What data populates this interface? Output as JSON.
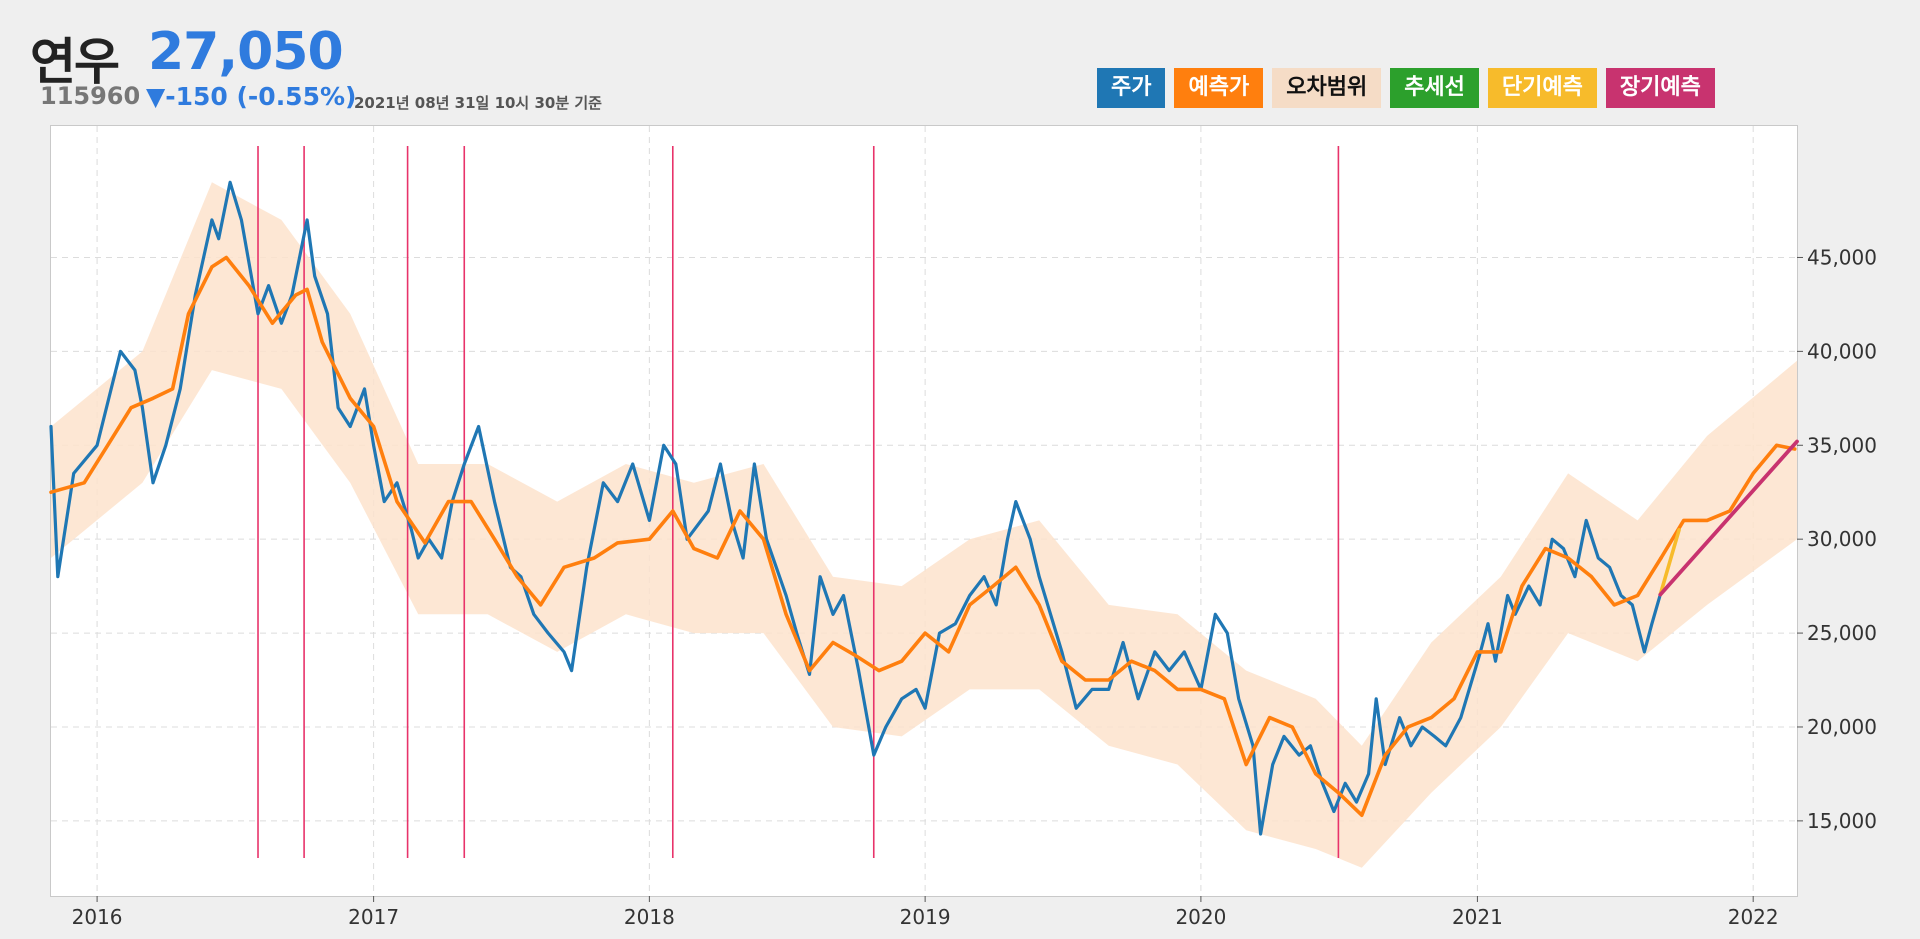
{
  "header": {
    "name": "연우",
    "price": "27,050",
    "code": "115960",
    "change": "▼-150 (-0.55%)",
    "date": "2021년 08년 31일 10시 30분 기준"
  },
  "legend": [
    {
      "label": "주가",
      "color": "#1f77b4",
      "text_color": "#ffffff"
    },
    {
      "label": "예측가",
      "color": "#ff7f0e",
      "text_color": "#ffffff"
    },
    {
      "label": "오차범위",
      "color": "#f5dcc6",
      "text_color": "#111111"
    },
    {
      "label": "추세선",
      "color": "#2ca02c",
      "text_color": "#ffffff"
    },
    {
      "label": "단기예측",
      "color": "#f7bb2b",
      "text_color": "#ffffff"
    },
    {
      "label": "장기예측",
      "color": "#c8336f",
      "text_color": "#ffffff"
    }
  ],
  "chart_data": {
    "type": "line",
    "x_axis": {
      "type": "date",
      "range": [
        "2015-11-01",
        "2022-02-28"
      ],
      "ticks": [
        "2016",
        "2017",
        "2018",
        "2019",
        "2020",
        "2021",
        "2022"
      ]
    },
    "y_axis": {
      "range": [
        11000,
        52000
      ],
      "position": "right",
      "ticks": [
        "15,000",
        "20,000",
        "25,000",
        "30,000",
        "35,000",
        "40,000",
        "45,000"
      ]
    },
    "grid": true,
    "vertical_markers": [
      "2016-08-01",
      "2016-10-01",
      "2017-02-15",
      "2017-05-01",
      "2018-02-01",
      "2018-10-25",
      "2020-07-01"
    ],
    "price": [
      [
        "2015-11-01",
        36000
      ],
      [
        "2015-11-10",
        28000
      ],
      [
        "2015-12-01",
        33500
      ],
      [
        "2016-01-01",
        35000
      ],
      [
        "2016-02-01",
        40000
      ],
      [
        "2016-02-20",
        39000
      ],
      [
        "2016-03-01",
        37000
      ],
      [
        "2016-03-15",
        33000
      ],
      [
        "2016-04-01",
        35000
      ],
      [
        "2016-04-20",
        38000
      ],
      [
        "2016-05-10",
        43000
      ],
      [
        "2016-06-01",
        47000
      ],
      [
        "2016-06-10",
        46000
      ],
      [
        "2016-06-25",
        49000
      ],
      [
        "2016-07-10",
        47000
      ],
      [
        "2016-08-01",
        42000
      ],
      [
        "2016-08-15",
        43500
      ],
      [
        "2016-09-01",
        41500
      ],
      [
        "2016-09-15",
        43000
      ],
      [
        "2016-10-05",
        47000
      ],
      [
        "2016-10-15",
        44000
      ],
      [
        "2016-11-01",
        42000
      ],
      [
        "2016-11-15",
        37000
      ],
      [
        "2016-12-01",
        36000
      ],
      [
        "2016-12-20",
        38000
      ],
      [
        "2017-01-01",
        35000
      ],
      [
        "2017-01-15",
        32000
      ],
      [
        "2017-02-01",
        33000
      ],
      [
        "2017-02-20",
        30500
      ],
      [
        "2017-03-01",
        29000
      ],
      [
        "2017-03-15",
        30000
      ],
      [
        "2017-04-01",
        29000
      ],
      [
        "2017-04-15",
        32000
      ],
      [
        "2017-05-01",
        34000
      ],
      [
        "2017-05-20",
        36000
      ],
      [
        "2017-06-10",
        32000
      ],
      [
        "2017-07-01",
        28500
      ],
      [
        "2017-07-15",
        28000
      ],
      [
        "2017-08-01",
        26000
      ],
      [
        "2017-08-20",
        25000
      ],
      [
        "2017-09-10",
        24000
      ],
      [
        "2017-09-20",
        23000
      ],
      [
        "2017-10-10",
        28500
      ],
      [
        "2017-11-01",
        33000
      ],
      [
        "2017-11-20",
        32000
      ],
      [
        "2017-12-10",
        34000
      ],
      [
        "2018-01-01",
        31000
      ],
      [
        "2018-01-20",
        35000
      ],
      [
        "2018-02-05",
        34000
      ],
      [
        "2018-02-20",
        30000
      ],
      [
        "2018-03-20",
        31500
      ],
      [
        "2018-04-05",
        34000
      ],
      [
        "2018-04-20",
        31000
      ],
      [
        "2018-05-05",
        29000
      ],
      [
        "2018-05-20",
        34000
      ],
      [
        "2018-06-05",
        30000
      ],
      [
        "2018-07-01",
        27000
      ],
      [
        "2018-07-15",
        25000
      ],
      [
        "2018-08-01",
        22800
      ],
      [
        "2018-08-15",
        28000
      ],
      [
        "2018-09-01",
        26000
      ],
      [
        "2018-09-15",
        27000
      ],
      [
        "2018-10-05",
        23000
      ],
      [
        "2018-10-25",
        18500
      ],
      [
        "2018-11-10",
        20000
      ],
      [
        "2018-12-01",
        21500
      ],
      [
        "2018-12-20",
        22000
      ],
      [
        "2019-01-01",
        21000
      ],
      [
        "2019-01-20",
        25000
      ],
      [
        "2019-02-10",
        25500
      ],
      [
        "2019-03-01",
        27000
      ],
      [
        "2019-03-20",
        28000
      ],
      [
        "2019-04-05",
        26500
      ],
      [
        "2019-04-20",
        30000
      ],
      [
        "2019-05-01",
        32000
      ],
      [
        "2019-05-20",
        30000
      ],
      [
        "2019-06-01",
        28000
      ],
      [
        "2019-07-01",
        24000
      ],
      [
        "2019-07-20",
        21000
      ],
      [
        "2019-08-10",
        22000
      ],
      [
        "2019-09-01",
        22000
      ],
      [
        "2019-09-20",
        24500
      ],
      [
        "2019-10-10",
        21500
      ],
      [
        "2019-11-01",
        24000
      ],
      [
        "2019-11-20",
        23000
      ],
      [
        "2019-12-10",
        24000
      ],
      [
        "2020-01-01",
        22000
      ],
      [
        "2020-01-20",
        26000
      ],
      [
        "2020-02-05",
        25000
      ],
      [
        "2020-02-20",
        21500
      ],
      [
        "2020-03-10",
        19000
      ],
      [
        "2020-03-20",
        14300
      ],
      [
        "2020-04-05",
        18000
      ],
      [
        "2020-04-20",
        19500
      ],
      [
        "2020-05-10",
        18500
      ],
      [
        "2020-05-25",
        19000
      ],
      [
        "2020-06-10",
        17000
      ],
      [
        "2020-06-25",
        15500
      ],
      [
        "2020-07-10",
        17000
      ],
      [
        "2020-07-25",
        16000
      ],
      [
        "2020-08-10",
        17500
      ],
      [
        "2020-08-20",
        21500
      ],
      [
        "2020-09-01",
        18000
      ],
      [
        "2020-09-20",
        20500
      ],
      [
        "2020-10-05",
        19000
      ],
      [
        "2020-10-20",
        20000
      ],
      [
        "2020-11-05",
        19500
      ],
      [
        "2020-11-20",
        19000
      ],
      [
        "2020-12-10",
        20500
      ],
      [
        "2021-01-05",
        24000
      ],
      [
        "2021-01-15",
        25500
      ],
      [
        "2021-01-25",
        23500
      ],
      [
        "2021-02-10",
        27000
      ],
      [
        "2021-02-20",
        26000
      ],
      [
        "2021-03-10",
        27500
      ],
      [
        "2021-03-25",
        26500
      ],
      [
        "2021-04-10",
        30000
      ],
      [
        "2021-04-25",
        29500
      ],
      [
        "2021-05-10",
        28000
      ],
      [
        "2021-05-25",
        31000
      ],
      [
        "2021-06-10",
        29000
      ],
      [
        "2021-06-25",
        28500
      ],
      [
        "2021-07-10",
        27000
      ],
      [
        "2021-07-25",
        26500
      ],
      [
        "2021-08-10",
        24000
      ],
      [
        "2021-08-20",
        25500
      ],
      [
        "2021-08-31",
        27050
      ]
    ],
    "forecast": [
      [
        "2015-11-01",
        32500
      ],
      [
        "2015-12-15",
        33000
      ],
      [
        "2016-01-15",
        35000
      ],
      [
        "2016-02-15",
        37000
      ],
      [
        "2016-03-15",
        37500
      ],
      [
        "2016-04-10",
        38000
      ],
      [
        "2016-05-01",
        42000
      ],
      [
        "2016-06-01",
        44500
      ],
      [
        "2016-06-20",
        45000
      ],
      [
        "2016-07-20",
        43500
      ],
      [
        "2016-08-20",
        41500
      ],
      [
        "2016-09-20",
        43000
      ],
      [
        "2016-10-05",
        43300
      ],
      [
        "2016-10-25",
        40500
      ],
      [
        "2016-12-01",
        37500
      ],
      [
        "2017-01-01",
        36000
      ],
      [
        "2017-02-01",
        32000
      ],
      [
        "2017-03-10",
        29800
      ],
      [
        "2017-04-10",
        32000
      ],
      [
        "2017-05-10",
        32000
      ],
      [
        "2017-06-10",
        30000
      ],
      [
        "2017-07-10",
        28000
      ],
      [
        "2017-08-10",
        26500
      ],
      [
        "2017-09-10",
        28500
      ],
      [
        "2017-10-20",
        29000
      ],
      [
        "2017-11-20",
        29800
      ],
      [
        "2018-01-01",
        30000
      ],
      [
        "2018-02-01",
        31500
      ],
      [
        "2018-03-01",
        29500
      ],
      [
        "2018-04-01",
        29000
      ],
      [
        "2018-05-01",
        31500
      ],
      [
        "2018-06-01",
        30000
      ],
      [
        "2018-07-01",
        26000
      ],
      [
        "2018-08-01",
        23000
      ],
      [
        "2018-09-01",
        24500
      ],
      [
        "2018-10-01",
        23800
      ],
      [
        "2018-11-01",
        23000
      ],
      [
        "2018-12-01",
        23500
      ],
      [
        "2019-01-01",
        25000
      ],
      [
        "2019-02-01",
        24000
      ],
      [
        "2019-03-01",
        26500
      ],
      [
        "2019-04-01",
        27500
      ],
      [
        "2019-05-01",
        28500
      ],
      [
        "2019-06-01",
        26500
      ],
      [
        "2019-07-01",
        23500
      ],
      [
        "2019-08-01",
        22500
      ],
      [
        "2019-09-01",
        22500
      ],
      [
        "2019-10-01",
        23500
      ],
      [
        "2019-11-01",
        23000
      ],
      [
        "2019-12-01",
        22000
      ],
      [
        "2020-01-01",
        22000
      ],
      [
        "2020-02-01",
        21500
      ],
      [
        "2020-03-01",
        18000
      ],
      [
        "2020-04-01",
        20500
      ],
      [
        "2020-05-01",
        20000
      ],
      [
        "2020-06-01",
        17500
      ],
      [
        "2020-07-01",
        16500
      ],
      [
        "2020-08-01",
        15300
      ],
      [
        "2020-09-01",
        18500
      ],
      [
        "2020-10-01",
        20000
      ],
      [
        "2020-11-01",
        20500
      ],
      [
        "2020-12-01",
        21500
      ],
      [
        "2021-01-01",
        24000
      ],
      [
        "2021-02-01",
        24000
      ],
      [
        "2021-03-01",
        27500
      ],
      [
        "2021-04-01",
        29500
      ],
      [
        "2021-05-01",
        29000
      ],
      [
        "2021-06-01",
        28000
      ],
      [
        "2021-07-01",
        26500
      ],
      [
        "2021-08-01",
        27000
      ],
      [
        "2021-09-01",
        29000
      ]
    ],
    "forecast_extended": [
      [
        "2021-09-01",
        29000
      ],
      [
        "2021-10-01",
        31000
      ],
      [
        "2021-11-01",
        31000
      ],
      [
        "2021-12-01",
        31500
      ],
      [
        "2022-01-01",
        33500
      ],
      [
        "2022-02-01",
        35000
      ],
      [
        "2022-02-25",
        34800
      ]
    ],
    "error_band": [
      [
        "2015-11-01",
        29000,
        36000
      ],
      [
        "2016-03-01",
        33000,
        40000
      ],
      [
        "2016-06-01",
        39000,
        49000
      ],
      [
        "2016-09-01",
        38000,
        47000
      ],
      [
        "2016-12-01",
        33000,
        42000
      ],
      [
        "2017-03-01",
        26000,
        34000
      ],
      [
        "2017-06-01",
        26000,
        34000
      ],
      [
        "2017-09-01",
        24000,
        32000
      ],
      [
        "2017-12-01",
        26000,
        34000
      ],
      [
        "2018-03-01",
        25000,
        33000
      ],
      [
        "2018-06-01",
        25000,
        34000
      ],
      [
        "2018-09-01",
        20000,
        28000
      ],
      [
        "2018-12-01",
        19500,
        27500
      ],
      [
        "2019-03-01",
        22000,
        30000
      ],
      [
        "2019-06-01",
        22000,
        31000
      ],
      [
        "2019-09-01",
        19000,
        26500
      ],
      [
        "2019-12-01",
        18000,
        26000
      ],
      [
        "2020-03-01",
        14500,
        23000
      ],
      [
        "2020-06-01",
        13500,
        21500
      ],
      [
        "2020-08-01",
        12500,
        19000
      ],
      [
        "2020-11-01",
        16500,
        24500
      ],
      [
        "2021-02-01",
        20000,
        28000
      ],
      [
        "2021-05-01",
        25000,
        33500
      ],
      [
        "2021-08-01",
        23500,
        31000
      ],
      [
        "2021-11-01",
        26500,
        35500
      ],
      [
        "2022-02-28",
        30000,
        39500
      ]
    ],
    "short_term_forecast": [
      [
        "2021-08-31",
        27050
      ],
      [
        "2021-09-25",
        30500
      ]
    ],
    "long_term_forecast": [
      [
        "2021-08-31",
        27050
      ],
      [
        "2022-02-28",
        35200
      ]
    ]
  }
}
